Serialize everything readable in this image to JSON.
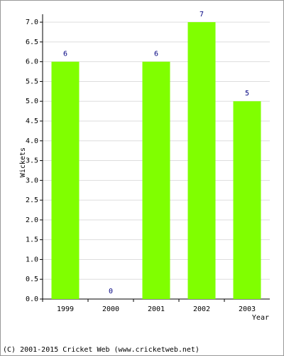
{
  "chart_data": {
    "type": "bar",
    "x_label": "Year",
    "y_label": "Wickets",
    "categories": [
      "1999",
      "2000",
      "2001",
      "2002",
      "2003"
    ],
    "values": [
      6,
      0,
      6,
      7,
      5
    ],
    "color": "#80ff00",
    "label_color": "#000080",
    "ylim": [
      0,
      7.2
    ],
    "yticks": [
      {
        "value": 0,
        "label": "0.0"
      },
      {
        "value": 0.5,
        "label": "0.5"
      },
      {
        "value": 1,
        "label": "1.0"
      },
      {
        "value": 1.5,
        "label": "1.5"
      },
      {
        "value": 2,
        "label": "2.0"
      },
      {
        "value": 2.5,
        "label": "2.5"
      },
      {
        "value": 3,
        "label": "3.0"
      },
      {
        "value": 3.5,
        "label": "3.5"
      },
      {
        "value": 4,
        "label": "4.0"
      },
      {
        "value": 4.5,
        "label": "4.5"
      },
      {
        "value": 5,
        "label": "5.0"
      },
      {
        "value": 5.5,
        "label": "5.5"
      },
      {
        "value": 6,
        "label": "6.0"
      },
      {
        "value": 6.5,
        "label": "6.5"
      },
      {
        "value": 7,
        "label": "7.0"
      }
    ],
    "grid": true,
    "footer": "(C) 2001-2015 Cricket Web (www.cricketweb.net)"
  }
}
